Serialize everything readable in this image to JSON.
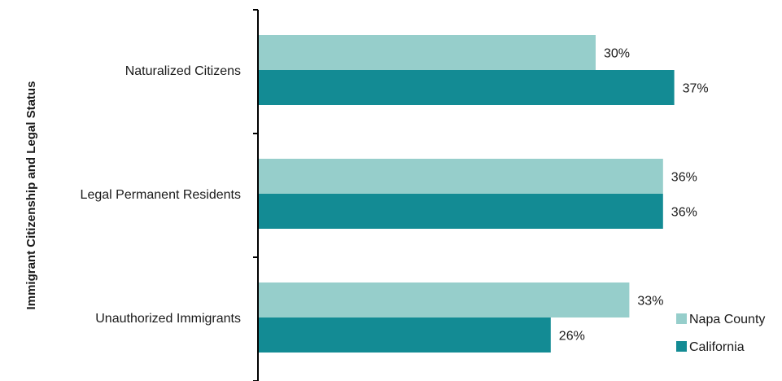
{
  "chart_data": {
    "type": "bar",
    "orientation": "horizontal",
    "ylabel": "Immigrant Citizenship and Legal Status",
    "xlabel": "",
    "categories": [
      "Naturalized Citizens",
      "Legal Permanent Residents",
      "Unauthorized Immigrants"
    ],
    "series": [
      {
        "name": "Napa County",
        "values": [
          30,
          36,
          33
        ],
        "labels": [
          "30%",
          "36%",
          "33%"
        ],
        "color": "#96cecb"
      },
      {
        "name": "California",
        "values": [
          37,
          36,
          26
        ],
        "labels": [
          "37%",
          "36%",
          "26%"
        ],
        "color": "#138b94"
      }
    ],
    "xlim": [
      0,
      40
    ],
    "grid": false,
    "legend_position": "bottom-right"
  }
}
